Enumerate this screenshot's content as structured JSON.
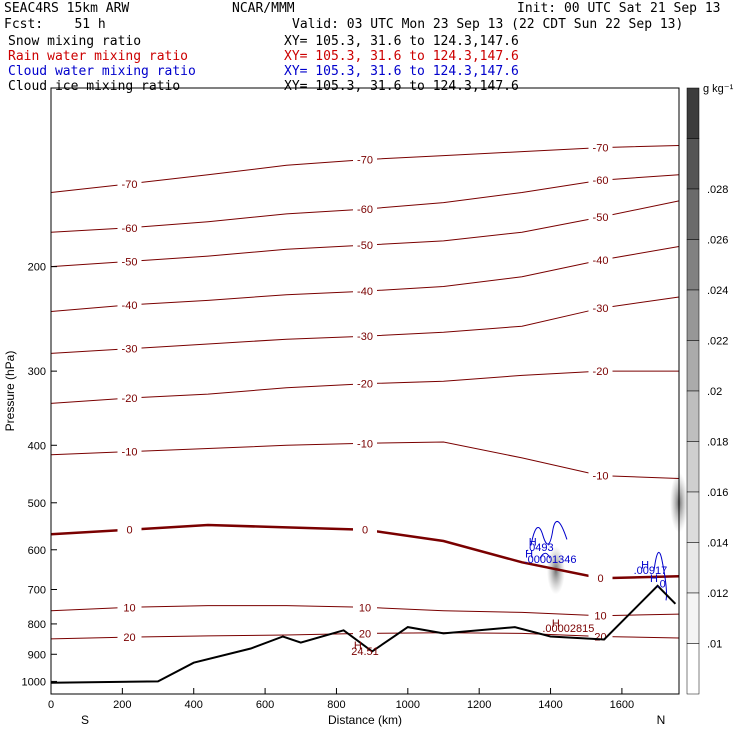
{
  "header": {
    "model": "SEAC4RS 15km ARW",
    "center": "NCAR/MMM",
    "init": "Init: 00 UTC Sat 21 Sep 13",
    "fcst": "Fcst:    51 h",
    "valid": "Valid: 03 UTC Mon 23 Sep 13 (22 CDT Sun 22 Sep 13)",
    "fields": [
      {
        "name": "Snow mixing ratio",
        "xy": "XY= 105.3, 31.6 to 124.3,147.6",
        "color": "#000000"
      },
      {
        "name": "Rain water mixing ratio",
        "xy": "XY= 105.3, 31.6 to 124.3,147.6",
        "color": "#cc0000"
      },
      {
        "name": "Cloud water mixing ratio",
        "xy": "XY= 105.3, 31.6 to 124.3,147.6",
        "color": "#0000cc"
      },
      {
        "name": "Cloud ice mixing ratio",
        "xy": "XY= 105.3, 31.6 to 124.3,147.6",
        "color": "#000000"
      }
    ]
  },
  "colors": {
    "temp": "#7a0000",
    "cloud": "#0000cc",
    "terrain": "#000000",
    "zero": "#7a0000"
  },
  "chart_data": {
    "type": "cross-section",
    "xlabel": "Distance (km)",
    "ylabel": "Pressure (hPa)",
    "xlim": [
      0,
      1760
    ],
    "ylim": [
      100,
      1050
    ],
    "y_scale": "log",
    "xticks": [
      "0",
      "200",
      "400",
      "600",
      "800",
      "1000",
      "1200",
      "1400",
      "1600"
    ],
    "xtick_values": [
      0,
      200,
      400,
      600,
      800,
      1000,
      1200,
      1400,
      1600
    ],
    "yticks": [
      "200",
      "300",
      "400",
      "500",
      "600",
      "700",
      "800",
      "900",
      "1000"
    ],
    "ytick_values": [
      200,
      300,
      400,
      500,
      600,
      700,
      800,
      900,
      1000
    ],
    "endpoints": {
      "left": "S",
      "right": "N"
    },
    "colorbar": {
      "units": "g kg⁻¹",
      "labels": [
        ".01",
        ".012",
        ".014",
        ".016",
        ".018",
        ".02",
        ".022",
        ".024",
        ".026",
        ".028"
      ],
      "shades": [
        "#ffffff",
        "#f4f4f4",
        "#e8e8e8",
        "#dcdcdc",
        "#cfcfcf",
        "#bebebe",
        "#ababab",
        "#979797",
        "#818181",
        "#6b6b6b",
        "#555555",
        "#3c3c3c"
      ]
    },
    "temperature_contours": [
      {
        "label": "-70",
        "p": [
          150,
          145,
          140,
          135,
          132,
          130,
          128,
          126,
          125
        ]
      },
      {
        "label": "-60",
        "p": [
          175,
          172,
          168,
          163,
          160,
          156,
          150,
          143,
          140
        ]
      },
      {
        "label": "-50",
        "p": [
          200,
          196,
          192,
          187,
          184,
          181,
          175,
          165,
          155
        ]
      },
      {
        "label": "-40",
        "p": [
          238,
          232,
          228,
          223,
          220,
          216,
          208,
          195,
          185
        ]
      },
      {
        "label": "-30",
        "p": [
          280,
          275,
          270,
          265,
          262,
          258,
          252,
          235,
          225
        ]
      },
      {
        "label": "-20",
        "p": [
          340,
          333,
          328,
          320,
          315,
          312,
          305,
          300,
          300
        ]
      },
      {
        "label": "-10",
        "p": [
          415,
          410,
          405,
          400,
          397,
          395,
          420,
          450,
          455
        ]
      },
      {
        "label": "0",
        "p": [
          565,
          555,
          545,
          550,
          555,
          580,
          630,
          670,
          665
        ]
      },
      {
        "label": "10",
        "p": [
          760,
          750,
          745,
          745,
          750,
          760,
          765,
          775,
          770
        ]
      },
      {
        "label": "20",
        "p": [
          848,
          842,
          838,
          835,
          830,
          828,
          830,
          840,
          845
        ]
      }
    ],
    "terrain": {
      "distance_km": [
        0,
        300,
        400,
        560,
        650,
        700,
        820,
        900,
        1000,
        1100,
        1300,
        1400,
        1550,
        1700,
        1750
      ],
      "pressure_hpa": [
        1005,
        1000,
        930,
        880,
        840,
        860,
        820,
        890,
        810,
        830,
        810,
        840,
        850,
        690,
        740
      ]
    },
    "annotations": [
      {
        "text": "H",
        "x": 860,
        "p": 882,
        "color": "#7a0000"
      },
      {
        "text": "24.51",
        "x": 880,
        "p": 902,
        "color": "#7a0000"
      },
      {
        "text": "H",
        "x": 1415,
        "p": 810,
        "color": "#7a0000"
      },
      {
        "text": ".00002815",
        "x": 1450,
        "p": 825,
        "color": "#7a0000"
      },
      {
        "text": "H",
        "x": 1350,
        "p": 590,
        "color": "#0000cc"
      },
      {
        "text": ".0493",
        "x": 1370,
        "p": 603,
        "color": "#0000cc"
      },
      {
        "text": "H",
        "x": 1340,
        "p": 618,
        "color": "#0000cc"
      },
      {
        "text": ".00001346",
        "x": 1400,
        "p": 632,
        "color": "#0000cc"
      },
      {
        "text": "H",
        "x": 1665,
        "p": 645,
        "color": "#0000cc"
      },
      {
        "text": ".00917",
        "x": 1680,
        "p": 659,
        "color": "#0000cc"
      },
      {
        "text": "H",
        "x": 1690,
        "p": 680,
        "color": "#0000cc"
      },
      {
        "text": ".0",
        "x": 1710,
        "p": 694,
        "color": "#0000cc"
      }
    ]
  }
}
